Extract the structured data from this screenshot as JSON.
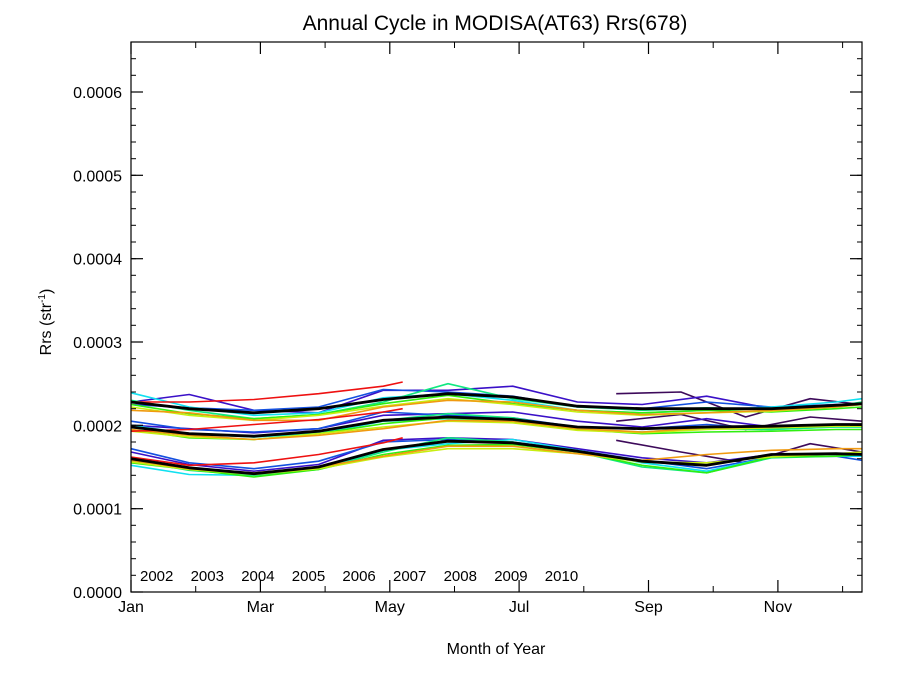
{
  "chart_data": {
    "type": "line",
    "title": "Annual Cycle in MODISA(AT63) Rrs(678)",
    "xlabel": "Month of Year",
    "ylabel_main": "Rrs (str",
    "ylabel_sup": "-1",
    "ylabel_close": ")",
    "xlim": [
      1,
      12.3
    ],
    "ylim": [
      0,
      0.00066
    ],
    "x_ticks": [
      {
        "x": 1,
        "label": "Jan"
      },
      {
        "x": 3,
        "label": "Mar"
      },
      {
        "x": 5,
        "label": "May"
      },
      {
        "x": 7,
        "label": "Jul"
      },
      {
        "x": 9,
        "label": "Sep"
      },
      {
        "x": 11,
        "label": "Nov"
      }
    ],
    "x_minor": [
      2,
      4,
      6,
      8,
      10,
      12
    ],
    "y_ticks": [
      {
        "y": 0,
        "label": "0.0000"
      },
      {
        "y": 0.0001,
        "label": "0.0001"
      },
      {
        "y": 0.0002,
        "label": "0.0002"
      },
      {
        "y": 0.0003,
        "label": "0.0003"
      },
      {
        "y": 0.0004,
        "label": "0.0004"
      },
      {
        "y": 0.0005,
        "label": "0.0005"
      },
      {
        "y": 0.0006,
        "label": "0.0006"
      }
    ],
    "y_minor_step": 2e-05,
    "legend_position": "bottom-left",
    "series": [
      {
        "name": "2002",
        "color": "#3d0a5a",
        "x": [
          8.5,
          9.5,
          10.5,
          11.5,
          12.3
        ],
        "upper": [
          0.000238,
          0.00024,
          0.00021,
          0.000232,
          0.000225
        ],
        "mean": [
          0.000205,
          0.000213,
          0.000195,
          0.00021,
          0.000205
        ],
        "lower": [
          0.000182,
          0.000168,
          0.000155,
          0.000178,
          0.000168
        ]
      },
      {
        "name": "2003",
        "color": "#3a10c8",
        "x": [
          1,
          1.9,
          2.9,
          3.9,
          4.9,
          5.9,
          6.9,
          7.9,
          8.9,
          9.9,
          10.9,
          11.9,
          12.3
        ],
        "upper": [
          0.000228,
          0.000237,
          0.000218,
          0.000215,
          0.000242,
          0.000242,
          0.000247,
          0.000228,
          0.000225,
          0.000235,
          0.00022,
          0.000225,
          0.000225
        ],
        "mean": [
          0.0002,
          0.000196,
          0.000191,
          0.000196,
          0.000212,
          0.000214,
          0.000216,
          0.000205,
          0.000198,
          0.000208,
          0.000198,
          0.000201,
          0.000201
        ],
        "lower": [
          0.000168,
          0.000153,
          0.000145,
          0.000153,
          0.000182,
          0.000185,
          0.000183,
          0.000172,
          0.000161,
          0.000155,
          0.000165,
          0.000166,
          0.000166
        ]
      },
      {
        "name": "2004",
        "color": "#1450e0",
        "x": [
          1,
          1.9,
          2.9,
          3.9,
          4.9,
          5.9,
          6.9,
          7.9,
          8.9,
          9.9,
          10.9,
          11.9,
          12.3
        ],
        "upper": [
          0.000225,
          0.000221,
          0.000218,
          0.000222,
          0.000243,
          0.00024,
          0.000235,
          0.000222,
          0.00022,
          0.000228,
          0.000222,
          0.000225,
          0.000225
        ],
        "mean": [
          0.000205,
          0.000195,
          0.000192,
          0.000196,
          0.000216,
          0.000212,
          0.000209,
          0.000198,
          0.000196,
          0.000201,
          0.000196,
          0.000199,
          0.000199
        ],
        "lower": [
          0.000172,
          0.000155,
          0.000148,
          0.000157,
          0.00018,
          0.000183,
          0.00018,
          0.00017,
          0.000158,
          0.000148,
          0.000162,
          0.000163,
          0.000158
        ]
      },
      {
        "name": "2005",
        "color": "#10e0f0",
        "x": [
          1,
          1.9,
          2.9,
          3.9,
          4.9,
          5.9,
          6.9,
          7.9,
          8.9,
          9.9,
          10.9,
          11.9,
          12.3
        ],
        "upper": [
          0.000239,
          0.000222,
          0.000212,
          0.000215,
          0.000233,
          0.000238,
          0.00023,
          0.000218,
          0.000215,
          0.000218,
          0.000222,
          0.000228,
          0.000232
        ],
        "mean": [
          0.0002,
          0.00019,
          0.000186,
          0.00019,
          0.000205,
          0.000208,
          0.000205,
          0.000195,
          0.000192,
          0.000197,
          0.000195,
          0.000198,
          0.000198
        ],
        "lower": [
          0.000152,
          0.000141,
          0.00014,
          0.000148,
          0.00017,
          0.000178,
          0.000183,
          0.00017,
          0.000155,
          0.000145,
          0.000162,
          0.000163,
          0.000163
        ]
      },
      {
        "name": "2006",
        "color": "#10e880",
        "x": [
          1,
          1.9,
          2.9,
          3.9,
          4.9,
          5.9,
          6.9,
          7.9,
          8.9,
          9.9,
          10.9,
          11.9,
          12.3
        ],
        "upper": [
          0.00023,
          0.000218,
          0.000208,
          0.000213,
          0.000228,
          0.00025,
          0.000232,
          0.000222,
          0.000218,
          0.000221,
          0.000219,
          0.000223,
          0.000228
        ],
        "mean": [
          0.000198,
          0.00019,
          0.000186,
          0.000192,
          0.000206,
          0.000214,
          0.000209,
          0.000196,
          0.000191,
          0.000196,
          0.000195,
          0.000198,
          0.000198
        ],
        "lower": [
          0.000158,
          0.000146,
          0.00014,
          0.000147,
          0.000168,
          0.000185,
          0.00018,
          0.000168,
          0.00015,
          0.000143,
          0.000161,
          0.000163,
          0.000165
        ]
      },
      {
        "name": "2007",
        "color": "#30ee10",
        "x": [
          1,
          1.9,
          2.9,
          3.9,
          4.9,
          5.9,
          6.9,
          7.9,
          8.9,
          9.9,
          10.9,
          11.9,
          12.3
        ],
        "upper": [
          0.000225,
          0.000214,
          0.000208,
          0.000213,
          0.000226,
          0.000236,
          0.000226,
          0.000218,
          0.000215,
          0.000218,
          0.000216,
          0.00022,
          0.000222
        ],
        "mean": [
          0.000195,
          0.000185,
          0.000183,
          0.00019,
          0.000202,
          0.000209,
          0.000205,
          0.000195,
          0.00019,
          0.000192,
          0.000193,
          0.000195,
          0.000195
        ],
        "lower": [
          0.000155,
          0.000147,
          0.000138,
          0.000147,
          0.000165,
          0.000176,
          0.000177,
          0.000168,
          0.000152,
          0.000143,
          0.000162,
          0.000163,
          0.000165
        ]
      },
      {
        "name": "2008",
        "color": "#c8ee10",
        "x": [
          1,
          1.9,
          2.9,
          3.9,
          4.9,
          5.9,
          6.9,
          7.9,
          8.9,
          9.9,
          10.9,
          11.9,
          12.3
        ],
        "upper": [
          0.000222,
          0.000212,
          0.000206,
          0.000212,
          0.000223,
          0.000232,
          0.000225,
          0.000216,
          0.000212,
          0.000215,
          0.000217,
          0.000222,
          0.000225
        ],
        "mean": [
          0.000193,
          0.000186,
          0.000183,
          0.00019,
          0.000198,
          0.000205,
          0.000203,
          0.000194,
          0.000191,
          0.000195,
          0.000197,
          0.000199,
          0.000199
        ],
        "lower": [
          0.000156,
          0.000147,
          0.000141,
          0.000148,
          0.000162,
          0.000172,
          0.000172,
          0.000166,
          0.000156,
          0.000155,
          0.000162,
          0.000166,
          0.000168
        ]
      },
      {
        "name": "2009",
        "color": "#f09a10",
        "x": [
          1,
          1.9,
          2.9,
          3.9,
          4.9,
          5.9,
          6.9,
          7.9,
          8.9,
          9.9,
          10.9,
          11.9,
          12.3
        ],
        "upper": [
          0.000218,
          0.000215,
          0.000206,
          0.000206,
          0.000222,
          0.00023,
          0.000228,
          0.000218,
          0.000213,
          0.000215,
          0.000218,
          0.000222,
          0.000225
        ],
        "mean": [
          0.000195,
          0.000188,
          0.000183,
          0.000188,
          0.000196,
          0.000206,
          0.000205,
          0.000196,
          0.000192,
          0.000197,
          0.000198,
          0.000201,
          0.000201
        ],
        "lower": [
          0.000158,
          0.000148,
          0.000143,
          0.00015,
          0.000163,
          0.000175,
          0.000175,
          0.000166,
          0.000158,
          0.000165,
          0.00017,
          0.000172,
          0.000172
        ]
      },
      {
        "name": "2010",
        "color": "#ee1010",
        "x": [
          1,
          1.9,
          2.9,
          3.9,
          4.9,
          5.2
        ],
        "upper": [
          0.000228,
          0.000228,
          0.000231,
          0.000238,
          0.000247,
          0.000252
        ],
        "mean": [
          0.000193,
          0.000195,
          0.000201,
          0.000207,
          0.000216,
          0.00022
        ],
        "lower": [
          0.000162,
          0.000152,
          0.000155,
          0.000165,
          0.000179,
          0.000185
        ]
      }
    ],
    "climatology": {
      "color": "#000000",
      "x": [
        1,
        1.9,
        2.9,
        3.9,
        4.9,
        5.9,
        6.9,
        7.9,
        8.9,
        9.9,
        10.9,
        11.9,
        12.3
      ],
      "upper": [
        0.000228,
        0.00022,
        0.000215,
        0.00022,
        0.000231,
        0.000238,
        0.000234,
        0.000223,
        0.00022,
        0.00022,
        0.00022,
        0.000224,
        0.000226
      ],
      "mean": [
        0.000198,
        0.00019,
        0.000187,
        0.000193,
        0.000206,
        0.00021,
        0.000207,
        0.000198,
        0.000196,
        0.000198,
        0.000199,
        0.000201,
        0.000201
      ],
      "lower": [
        0.00016,
        0.000149,
        0.000142,
        0.00015,
        0.000171,
        0.000181,
        0.000179,
        0.000169,
        0.000157,
        0.000152,
        0.000165,
        0.000166,
        0.000165
      ]
    }
  }
}
